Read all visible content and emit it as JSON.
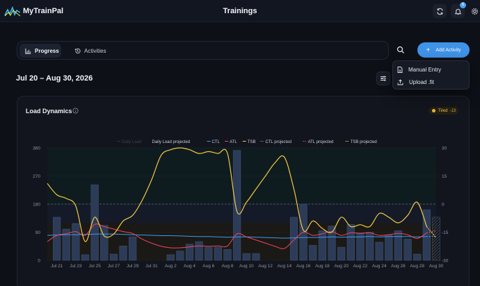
{
  "app": {
    "brand": "MyTrainPal",
    "page_title": "Trainings",
    "notification_count": "6"
  },
  "tabs": [
    {
      "label": "Progress",
      "icon": "bar-chart-icon",
      "active": true
    },
    {
      "label": "Activities",
      "icon": "history-icon",
      "active": false
    }
  ],
  "actions": {
    "add_activity": "Add Activity"
  },
  "menu": {
    "items": [
      {
        "label": "Manual Entry",
        "icon": "document-icon"
      },
      {
        "label": "Upload .fit",
        "icon": "upload-icon"
      }
    ]
  },
  "date_range": "Jul 20 – Aug 30, 2026",
  "card": {
    "title": "Load Dynamics",
    "status_label": "Tired",
    "status_value": "-13"
  },
  "colors": {
    "accent": "#3f93e8",
    "ctl": "#3b9cf0",
    "atl": "#f0455f",
    "tsb": "#f5c842",
    "bars": "#2c3c58",
    "status": "#f0b429"
  },
  "chart_data": {
    "type": "bar",
    "legend": [
      "Daily Load",
      "Daily Load projected",
      "CTL",
      "ATL",
      "TSB",
      "CTL projected",
      "ATL projected",
      "TSB projected"
    ],
    "legend_placement": "top-center",
    "x_tick_labels": [
      "Jul 21",
      "Jul 23",
      "Jul 25",
      "Jul 27",
      "Jul 29",
      "Jul 31",
      "Aug 2",
      "Aug 4",
      "Aug 6",
      "Aug 8",
      "Aug 10",
      "Aug 12",
      "Aug 14",
      "Aug 16",
      "Aug 18",
      "Aug 20",
      "Aug 22",
      "Aug 24",
      "Aug 26",
      "Aug 28",
      "Aug 30"
    ],
    "y_left_ticks": [
      0,
      90,
      180,
      270,
      360
    ],
    "y_left_lim": [
      0,
      360
    ],
    "y_right_ticks": [
      -30,
      -15,
      0,
      15,
      30
    ],
    "y_right_lim": [
      -30,
      30
    ],
    "grid": "horizontal dashed",
    "days": [
      "Jul 20",
      "Jul 21",
      "Jul 22",
      "Jul 23",
      "Jul 24",
      "Jul 25",
      "Jul 26",
      "Jul 27",
      "Jul 28",
      "Jul 29",
      "Jul 30",
      "Jul 31",
      "Aug 1",
      "Aug 2",
      "Aug 3",
      "Aug 4",
      "Aug 5",
      "Aug 6",
      "Aug 7",
      "Aug 8",
      "Aug 9",
      "Aug 10",
      "Aug 11",
      "Aug 12",
      "Aug 13",
      "Aug 14",
      "Aug 15",
      "Aug 16",
      "Aug 17",
      "Aug 18",
      "Aug 19",
      "Aug 20",
      "Aug 21",
      "Aug 22",
      "Aug 23",
      "Aug 24",
      "Aug 25",
      "Aug 26",
      "Aug 27",
      "Aug 28",
      "Aug 29",
      "Aug 30"
    ],
    "series": [
      {
        "name": "Daily Load",
        "values": [
          0,
          138,
          100,
          118,
          18,
          242,
          112,
          20,
          46,
          75,
          0,
          0,
          0,
          18,
          30,
          52,
          60,
          42,
          42,
          35,
          352,
          22,
          22,
          0,
          0,
          0,
          138,
          180,
          48,
          95,
          110,
          42,
          115,
          88,
          90,
          58,
          82,
          95,
          68,
          20,
          162,
          0
        ]
      },
      {
        "name": "Daily Load projected",
        "values": [
          null,
          null,
          null,
          null,
          null,
          null,
          null,
          null,
          null,
          null,
          null,
          null,
          null,
          null,
          null,
          null,
          null,
          null,
          null,
          null,
          null,
          null,
          null,
          null,
          null,
          null,
          null,
          null,
          null,
          null,
          null,
          null,
          null,
          null,
          null,
          null,
          null,
          null,
          null,
          null,
          null,
          138
        ]
      },
      {
        "name": "CTL",
        "values": [
          80,
          81,
          82,
          82,
          83,
          84,
          84,
          84,
          83,
          82,
          81,
          80,
          79,
          79,
          78,
          77,
          76,
          76,
          75,
          74,
          75,
          75,
          74,
          73,
          72,
          71,
          72,
          73,
          73,
          74,
          75,
          74,
          75,
          75,
          76,
          75,
          76,
          76,
          76,
          75,
          76,
          77
        ]
      },
      {
        "name": "ATL",
        "values": [
          60,
          80,
          85,
          92,
          80,
          115,
          108,
          100,
          92,
          86,
          68,
          55,
          45,
          40,
          40,
          43,
          46,
          45,
          46,
          46,
          85,
          75,
          65,
          55,
          45,
          38,
          65,
          90,
          80,
          85,
          92,
          80,
          88,
          86,
          88,
          80,
          82,
          86,
          82,
          70,
          88,
          95
        ]
      },
      {
        "name": "TSB",
        "values": [
          11,
          5,
          3,
          -1,
          -20,
          -7,
          -17,
          -16,
          -9,
          -6,
          2,
          13,
          26,
          29,
          30,
          29,
          27,
          28,
          27,
          27,
          -4,
          1,
          8,
          15,
          22,
          25,
          8,
          -14,
          -9,
          -13,
          -15,
          -7,
          -12,
          -11,
          -12,
          -5,
          -7,
          -10,
          -6,
          1,
          -12,
          -18
        ]
      }
    ]
  }
}
